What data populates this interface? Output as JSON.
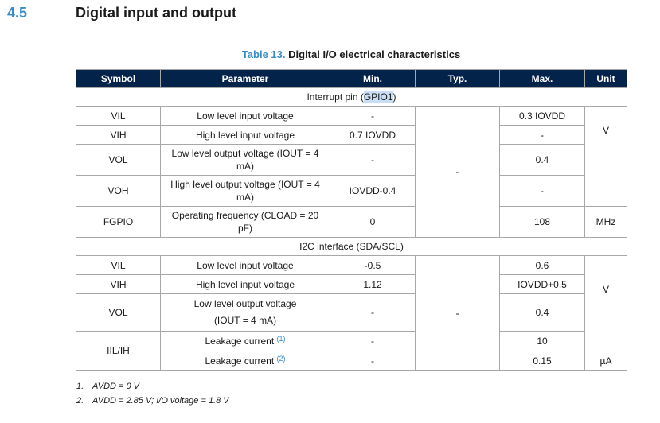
{
  "section": {
    "number": "4.5",
    "title": "Digital input and output"
  },
  "caption": {
    "label": "Table 13.",
    "title": "Digital I/O electrical characteristics"
  },
  "headers": [
    "Symbol",
    "Parameter",
    "Min.",
    "Typ.",
    "Max.",
    "Unit"
  ],
  "interrupt": {
    "title_prefix": "Interrupt pin (",
    "title_highlight": "GPIO1",
    "title_suffix": ")",
    "typ": "-",
    "unit_v": "V",
    "unit_mhz": "MHz",
    "rows": [
      {
        "symbol": "VIL",
        "param": "Low level input voltage",
        "min": "-",
        "max": "0.3 IOVDD"
      },
      {
        "symbol": "VIH",
        "param": "High level input voltage",
        "min": "0.7 IOVDD",
        "max": "-"
      },
      {
        "symbol": "VOL",
        "param": "Low level output voltage (IOUT = 4 mA)",
        "min": "-",
        "max": "0.4"
      },
      {
        "symbol": "VOH",
        "param": "High level output voltage (IOUT = 4 mA)",
        "min": "IOVDD-0.4",
        "max": "-"
      },
      {
        "symbol": "FGPIO",
        "param": "Operating frequency (CLOAD = 20 pF)",
        "min": "0",
        "max": "108"
      }
    ]
  },
  "i2c": {
    "title": "I2C interface (SDA/SCL)",
    "typ": "-",
    "unit_v": "V",
    "unit_ua": "µA",
    "rows": [
      {
        "symbol": "VIL",
        "param": "Low level input voltage",
        "min": "-0.5",
        "max": "0.6"
      },
      {
        "symbol": "VIH",
        "param": "High level input voltage",
        "min": "1.12",
        "max": "IOVDD+0.5"
      },
      {
        "symbol": "VOL",
        "param_line1": "Low level output voltage",
        "param_line2": "(IOUT = 4 mA)",
        "min": "-",
        "max": "0.4"
      },
      {
        "symbol": "IIL/IH",
        "param": "Leakage current",
        "ref": "(1)",
        "min": "-",
        "max": "10"
      },
      {
        "param": "Leakage current",
        "ref": "(2)",
        "min": "-",
        "max": "0.15"
      }
    ]
  },
  "notes": [
    {
      "num": "1.",
      "text": "AVDD = 0 V"
    },
    {
      "num": "2.",
      "text": "AVDD = 2.85 V; I/O voltage = 1.8 V"
    }
  ]
}
